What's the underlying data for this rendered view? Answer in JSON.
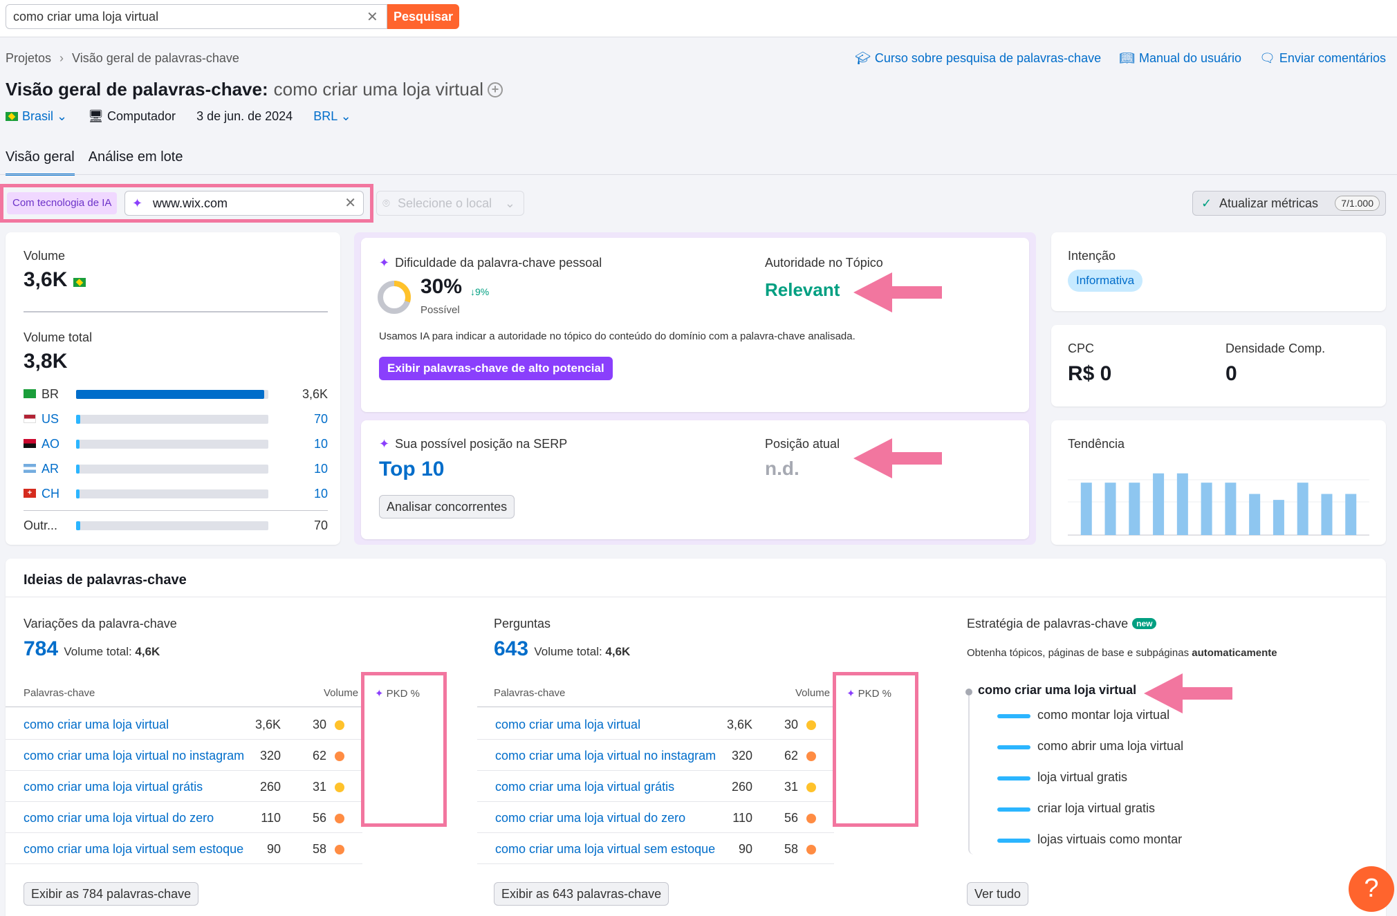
{
  "search": {
    "query": "como criar uma loja virtual",
    "button": "Pesquisar"
  },
  "breadcrumb": {
    "root": "Projetos",
    "current": "Visão geral de palavras-chave"
  },
  "top_links": {
    "course": "Curso sobre pesquisa de palavras-chave",
    "manual": "Manual do usuário",
    "feedback": "Enviar comentários"
  },
  "title": {
    "label": "Visão geral de palavras-chave:",
    "keyword": "como criar uma loja virtual"
  },
  "filters": {
    "country": "Brasil",
    "device": "Computador",
    "date": "3 de jun. de 2024",
    "currency": "BRL"
  },
  "tabs": [
    "Visão geral",
    "Análise em lote"
  ],
  "ai": {
    "label": "Com tecnologia de IA",
    "domain": "www.wix.com",
    "location_placeholder": "Selecione o local"
  },
  "update": {
    "label": "Atualizar métricas",
    "count": "7/1.000"
  },
  "volume": {
    "label": "Volume",
    "value": "3,6K",
    "total_label": "Volume total",
    "total_value": "3,8K",
    "countries": [
      {
        "code": "BR",
        "value": "3,6K",
        "share": 0.98
      },
      {
        "code": "US",
        "value": "70",
        "share": 0.02
      },
      {
        "code": "AO",
        "value": "10",
        "share": 0.01
      },
      {
        "code": "AR",
        "value": "10",
        "share": 0.01
      },
      {
        "code": "CH",
        "value": "10",
        "share": 0.01
      }
    ],
    "others": {
      "label": "Outr...",
      "value": "70",
      "share": 0.02
    }
  },
  "kd": {
    "title": "Dificuldade da palavra-chave pessoal",
    "value": "30%",
    "delta": "↓9%",
    "delta_value": "9%",
    "level": "Possível",
    "percent": 30,
    "authority_label": "Autoridade no Tópico",
    "authority_value": "Relevant",
    "note": "Usamos IA para indicar a autoridade no tópico do conteúdo do domínio com a palavra-chave analisada.",
    "button": "Exibir palavras-chave de alto potencial"
  },
  "serp": {
    "title": "Sua possível posição na SERP",
    "value": "Top 10",
    "current_label": "Posição atual",
    "current_value": "n.d.",
    "button": "Analisar concorrentes"
  },
  "intent": {
    "label": "Intenção",
    "value": "Informativa"
  },
  "cpc": {
    "label": "CPC",
    "value": "R$ 0",
    "density_label": "Densidade Comp.",
    "density_value": "0"
  },
  "trend": {
    "label": "Tendência",
    "values": [
      0.79,
      0.79,
      0.79,
      0.93,
      0.93,
      0.79,
      0.79,
      0.62,
      0.53,
      0.79,
      0.62,
      0.62
    ]
  },
  "ideas": {
    "title": "Ideias de palavras-chave",
    "variations": {
      "title": "Variações da palavra-chave",
      "count": "784",
      "total_label": "Volume total:",
      "total": "4,6K",
      "button": "Exibir as 784 palavras-chave"
    },
    "questions": {
      "title": "Perguntas",
      "count": "643",
      "total_label": "Volume total:",
      "total": "4,6K",
      "button": "Exibir as 643 palavras-chave"
    },
    "headers": {
      "keyword": "Palavras-chave",
      "volume": "Volume",
      "pkd": "PKD %"
    },
    "rows": [
      {
        "kw": "como criar uma loja virtual",
        "vol": "3,6K",
        "pkd": "30",
        "level": "y"
      },
      {
        "kw": "como criar uma loja virtual no instagram",
        "vol": "320",
        "pkd": "62",
        "level": "o"
      },
      {
        "kw": "como criar uma loja virtual grátis",
        "vol": "260",
        "pkd": "31",
        "level": "y"
      },
      {
        "kw": "como criar uma loja virtual do zero",
        "vol": "110",
        "pkd": "56",
        "level": "o"
      },
      {
        "kw": "como criar uma loja virtual sem estoque",
        "vol": "90",
        "pkd": "58",
        "level": "o"
      }
    ],
    "strategy": {
      "title": "Estratégia de palavras-chave",
      "badge": "new",
      "desc": "Obtenha tópicos, páginas de base e subpáginas",
      "desc_bold": "automaticamente",
      "root": "como criar uma loja virtual",
      "items": [
        "como montar loja virtual",
        "como abrir uma loja virtual",
        "loja virtual gratis",
        "criar loja virtual gratis",
        "lojas virtuais como montar"
      ],
      "button": "Ver tudo"
    }
  },
  "help": "?"
}
